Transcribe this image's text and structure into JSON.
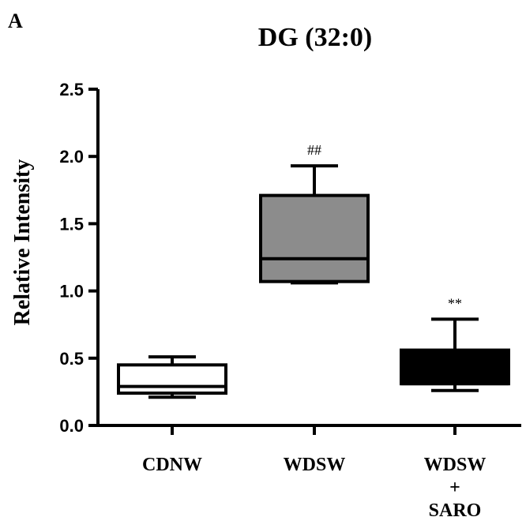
{
  "chart_data": {
    "type": "box",
    "panel_label": "A",
    "title": "DG (32:0)",
    "ylabel": "Relative Intensity",
    "xlabel": "",
    "ylim": [
      0,
      2.5
    ],
    "yticks": [
      "0.0",
      "0.5",
      "1.0",
      "1.5",
      "2.0",
      "2.5"
    ],
    "grid": false,
    "categories": [
      {
        "lines": [
          "CDNW"
        ]
      },
      {
        "lines": [
          "WDSW"
        ]
      },
      {
        "lines": [
          "WDSW",
          "+",
          "SARO"
        ]
      }
    ],
    "boxes": [
      {
        "min": 0.21,
        "q1": 0.24,
        "median": 0.29,
        "q3": 0.45,
        "max": 0.51,
        "fill": "#ffffff",
        "annotation": ""
      },
      {
        "min": 1.06,
        "q1": 1.07,
        "median": 1.24,
        "q3": 1.71,
        "max": 1.93,
        "fill": "#8c8c8c",
        "annotation": "##"
      },
      {
        "min": 0.26,
        "q1": 0.31,
        "median": 0.31,
        "q3": 0.56,
        "max": 0.79,
        "fill": "#000000",
        "annotation": "**"
      }
    ]
  }
}
